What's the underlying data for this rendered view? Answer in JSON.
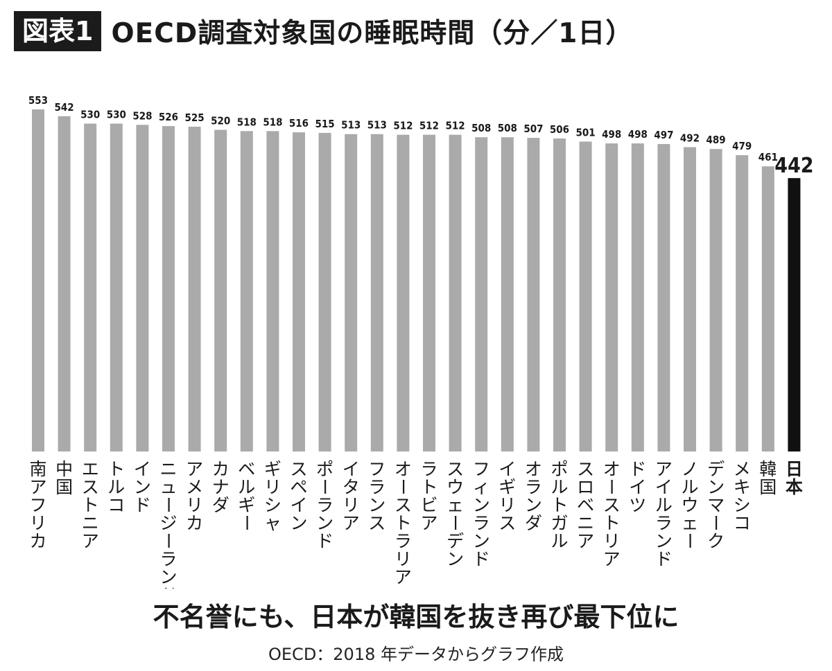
{
  "header": {
    "figure_label": "図表1",
    "title": "OECD調査対象国の睡眠時間（分／1日）"
  },
  "caption": "不名誉にも、日本が韓国を抜き再び最下位に",
  "source": "OECD：2018 年データからグラフ作成",
  "colors": {
    "bar": "#aaaaaa",
    "highlight": "#111111",
    "text": "#1a1a1a"
  },
  "chart_data": {
    "type": "bar",
    "title": "OECD調査対象国の睡眠時間（分／1日）",
    "xlabel": "",
    "ylabel": "",
    "ylim": [
      0,
      553
    ],
    "grid": false,
    "legend": "none",
    "highlight_category": "日本",
    "categories": [
      "南アフリカ",
      "中国",
      "エストニア",
      "トルコ",
      "インド",
      "ニュージーランド",
      "アメリカ",
      "カナダ",
      "ベルギー",
      "ギリシャ",
      "スペイン",
      "ポーランド",
      "イタリア",
      "フランス",
      "オーストラリア",
      "ラトビア",
      "スウェーデン",
      "フィンランド",
      "イギリス",
      "オランダ",
      "ポルトガル",
      "スロベニア",
      "オーストリア",
      "ドイツ",
      "アイルランド",
      "ノルウェー",
      "デンマーク",
      "メキシコ",
      "韓国",
      "日本"
    ],
    "values": [
      553,
      542,
      530,
      530,
      528,
      526,
      525,
      520,
      518,
      518,
      516,
      515,
      513,
      513,
      512,
      512,
      512,
      508,
      508,
      507,
      506,
      501,
      498,
      498,
      497,
      492,
      489,
      479,
      461,
      442
    ]
  }
}
